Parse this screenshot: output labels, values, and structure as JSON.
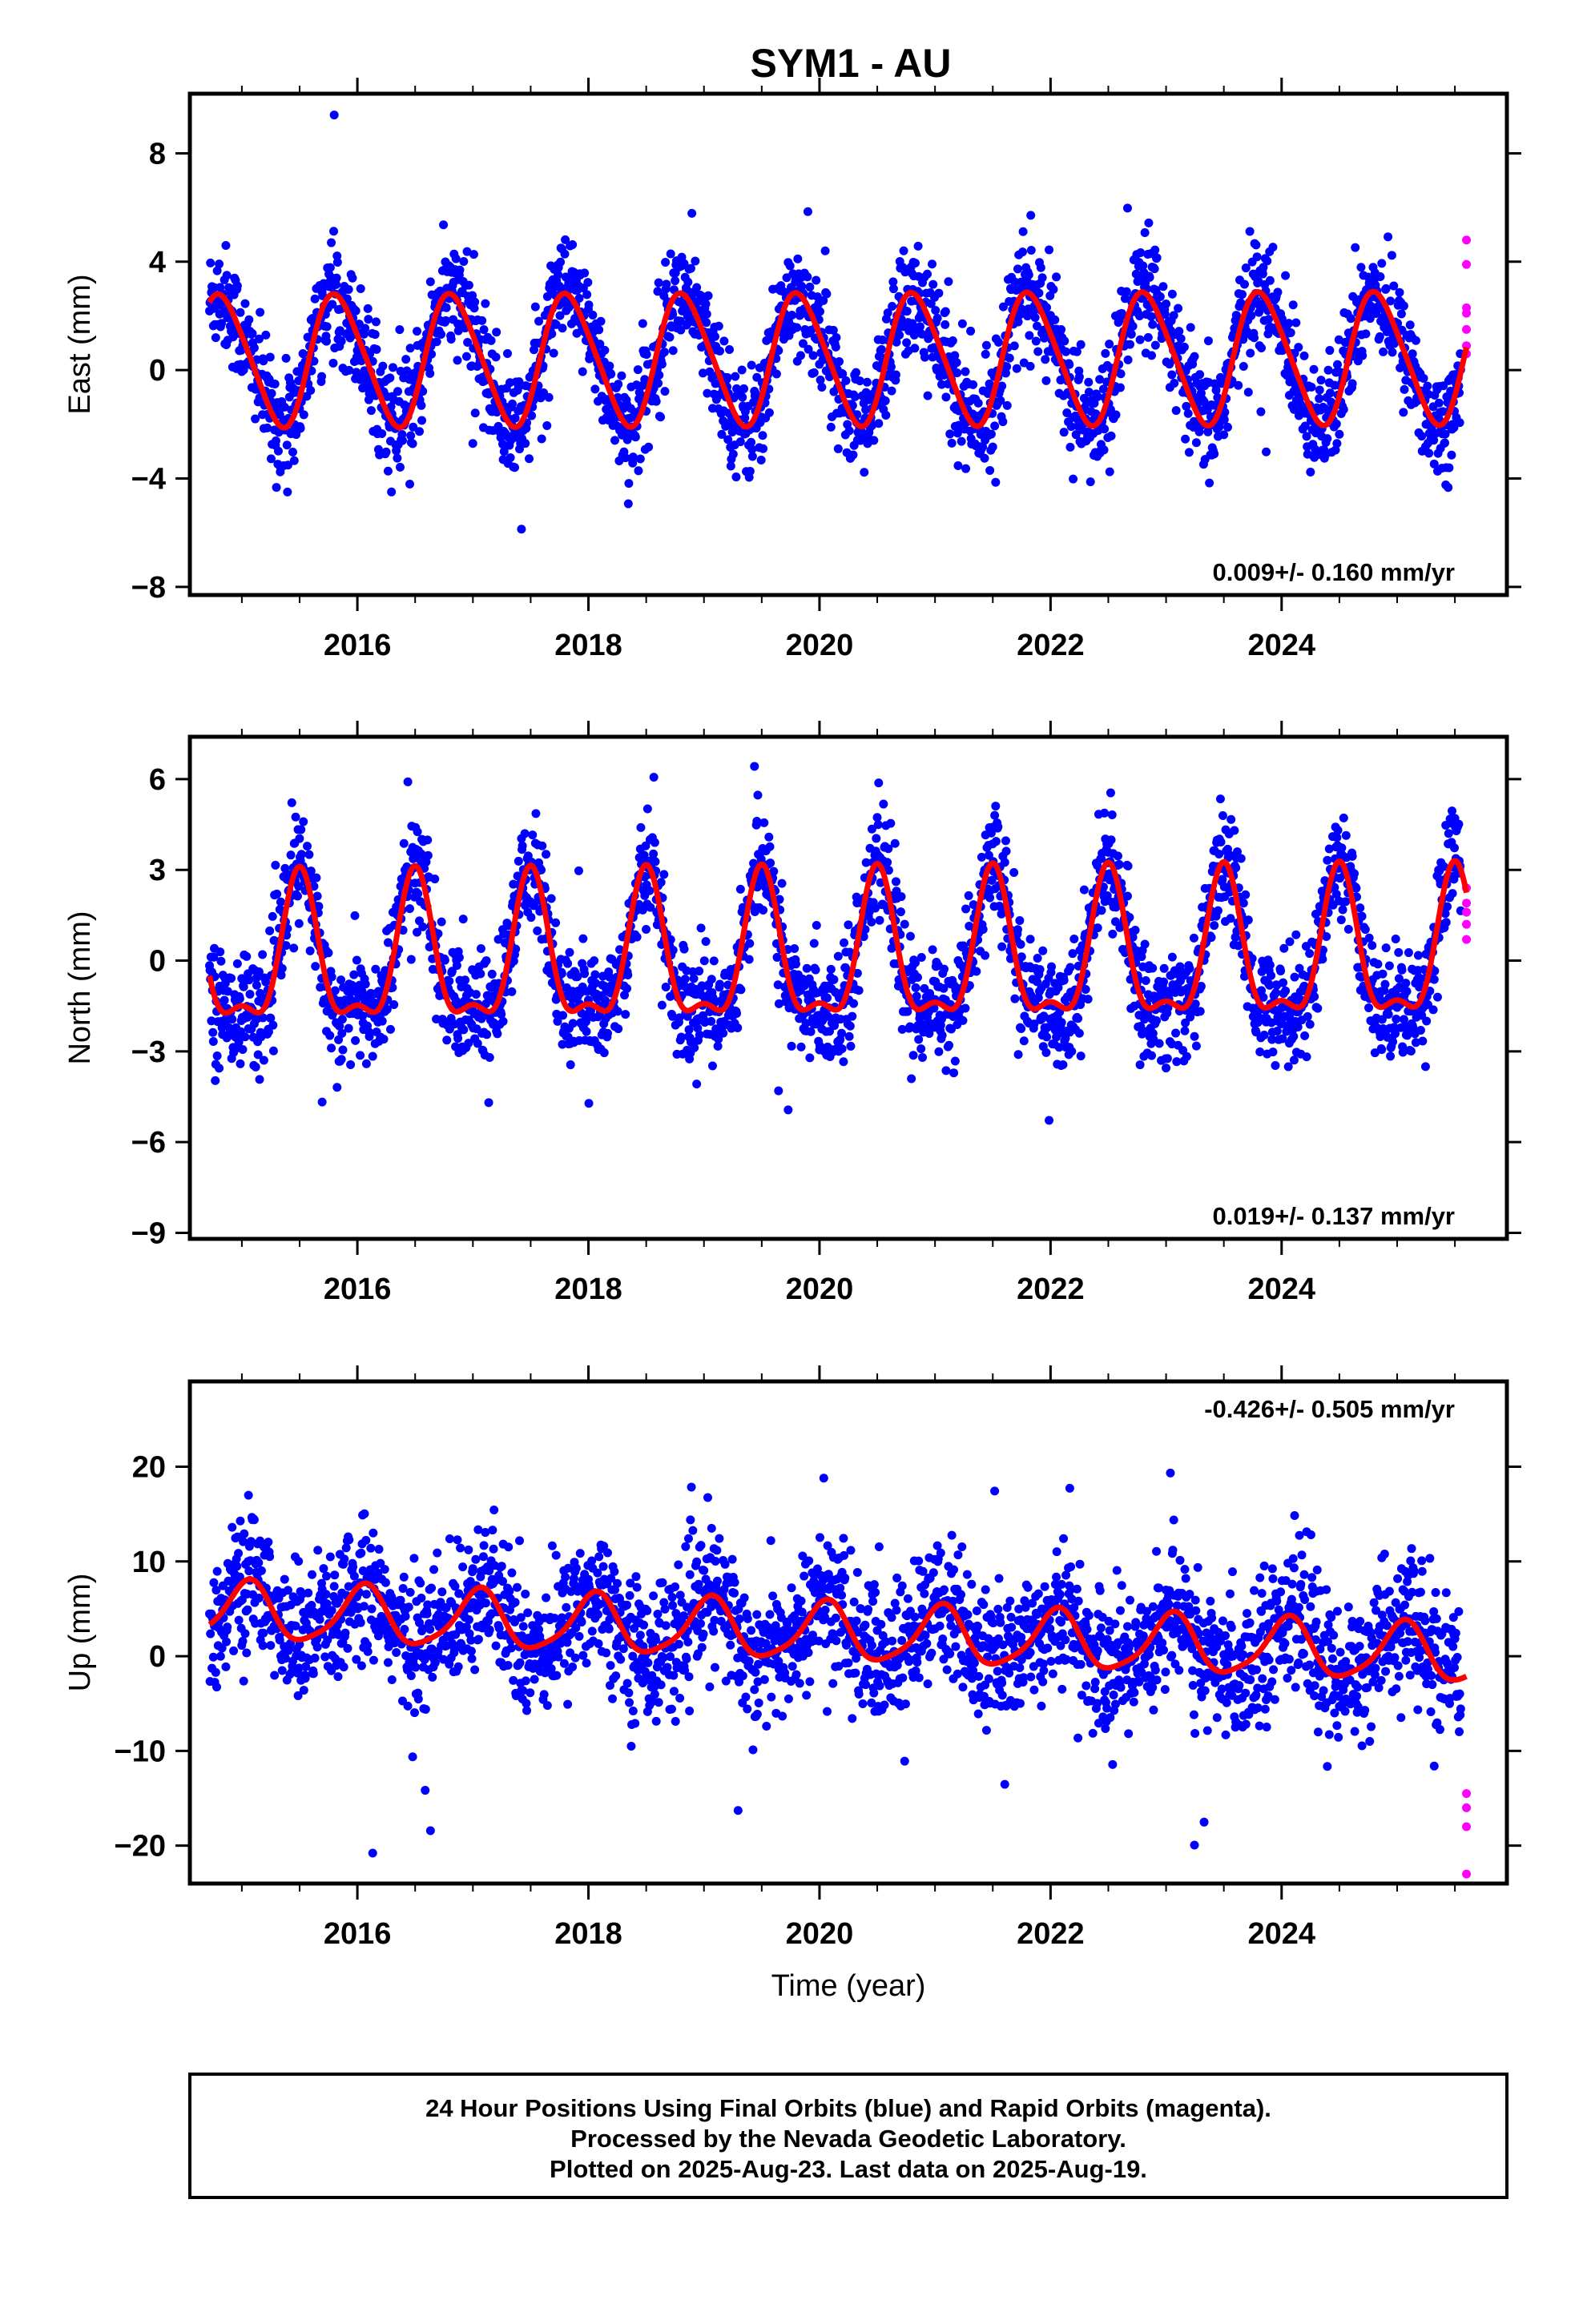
{
  "title": "SYM1 - AU",
  "colors": {
    "final": "#0000ff",
    "rapid": "#ff00ff",
    "model": "#ff0000",
    "frame": "#000000"
  },
  "chart_data": [
    {
      "type": "scatter",
      "component": "east",
      "ylabel": "East (mm)",
      "xlim": [
        2014.55,
        2025.95
      ],
      "ylim": [
        -8.3,
        10.2
      ],
      "yticks": [
        -8,
        -4,
        0,
        4,
        8
      ],
      "xticks": [
        2016,
        2018,
        2020,
        2022,
        2024
      ],
      "xlabel": "",
      "rate_label": "0.009+/- 0.160 mm/yr",
      "rate_position": "bottom-right",
      "series": [
        {
          "name": "Final Orbits (blue)",
          "style": "points",
          "color": "#0000ff",
          "start": 2014.72,
          "end": 2025.55,
          "n": 2600,
          "annual_amp": 2.4,
          "annual_phase": 0.83,
          "semi_amp": 0.3,
          "semi_phase": 0.2,
          "trend": 0.009,
          "offset": 0.4,
          "noise": 1.0
        },
        {
          "name": "Rapid Orbits (magenta)",
          "style": "points",
          "color": "#ff00ff",
          "points": [
            [
              2025.6,
              4.8
            ],
            [
              2025.6,
              3.9
            ],
            [
              2025.6,
              2.3
            ],
            [
              2025.6,
              2.1
            ],
            [
              2025.6,
              1.5
            ],
            [
              2025.6,
              0.9
            ],
            [
              2025.6,
              0.6
            ]
          ]
        },
        {
          "name": "model",
          "style": "line",
          "color": "#ff0000",
          "start": 2014.72,
          "end": 2025.6,
          "annual_amp": 2.4,
          "annual_phase": 0.83,
          "semi_amp": 0.3,
          "semi_phase": 0.2,
          "trend": 0.009,
          "offset": 0.4
        }
      ]
    },
    {
      "type": "scatter",
      "component": "north",
      "ylabel": "North (mm)",
      "xlim": [
        2014.55,
        2025.95
      ],
      "ylim": [
        -9.2,
        7.4
      ],
      "yticks": [
        -9,
        -6,
        -3,
        0,
        3,
        6
      ],
      "xticks": [
        2016,
        2018,
        2020,
        2022,
        2024
      ],
      "xlabel": "",
      "rate_label": "0.019+/- 0.137 mm/yr",
      "rate_position": "bottom-right",
      "series": [
        {
          "name": "Final Orbits (blue)",
          "style": "points",
          "color": "#0000ff",
          "start": 2014.72,
          "end": 2025.55,
          "n": 2600,
          "annual_amp": 2.3,
          "annual_phase": 0.5,
          "semi_amp": 0.9,
          "semi_phase": 0.5,
          "trend": 0.019,
          "offset": 0.0,
          "noise": 0.9
        },
        {
          "name": "Rapid Orbits (magenta)",
          "style": "points",
          "color": "#ff00ff",
          "points": [
            [
              2025.6,
              2.4
            ],
            [
              2025.6,
              1.9
            ],
            [
              2025.6,
              1.6
            ],
            [
              2025.6,
              1.2
            ],
            [
              2025.6,
              0.7
            ]
          ]
        },
        {
          "name": "model",
          "style": "line",
          "color": "#ff0000",
          "start": 2014.72,
          "end": 2025.6,
          "annual_amp": 2.3,
          "annual_phase": 0.5,
          "semi_amp": 0.9,
          "semi_phase": 0.5,
          "trend": 0.019,
          "offset": 0.0
        }
      ]
    },
    {
      "type": "scatter",
      "component": "up",
      "ylabel": "Up (mm)",
      "xlim": [
        2014.55,
        2025.95
      ],
      "ylim": [
        -24.0,
        29.0
      ],
      "yticks": [
        -20,
        -10,
        0,
        10,
        20
      ],
      "xticks": [
        2016,
        2018,
        2020,
        2022,
        2024
      ],
      "xlabel": "Time (year)",
      "rate_label": "-0.426+/- 0.505 mm/yr",
      "rate_position": "top-right",
      "series": [
        {
          "name": "Final Orbits (blue)",
          "style": "points",
          "color": "#0000ff",
          "start": 2014.72,
          "end": 2025.55,
          "n": 2600,
          "annual_amp": 3.0,
          "annual_phase": 0.05,
          "semi_amp": 0.6,
          "semi_phase": 0.1,
          "trend": -0.426,
          "offset": 2.5,
          "noise": 3.6
        },
        {
          "name": "Rapid Orbits (magenta)",
          "style": "points",
          "color": "#ff00ff",
          "points": [
            [
              2025.6,
              -14.5
            ],
            [
              2025.6,
              -16.0
            ],
            [
              2025.6,
              -18.0
            ],
            [
              2025.6,
              -23.0
            ]
          ]
        },
        {
          "name": "model",
          "style": "line",
          "color": "#ff0000",
          "start": 2014.72,
          "end": 2025.6,
          "annual_amp": 3.0,
          "annual_phase": 0.05,
          "semi_amp": 0.6,
          "semi_phase": 0.1,
          "trend": -0.426,
          "offset": 2.5
        }
      ]
    }
  ],
  "footer": {
    "line1": "24 Hour Positions Using Final Orbits (blue) and Rapid Orbits (magenta).",
    "line2": "Processed by the Nevada Geodetic Laboratory.",
    "line3": "Plotted on 2025-Aug-23. Last data on 2025-Aug-19."
  }
}
